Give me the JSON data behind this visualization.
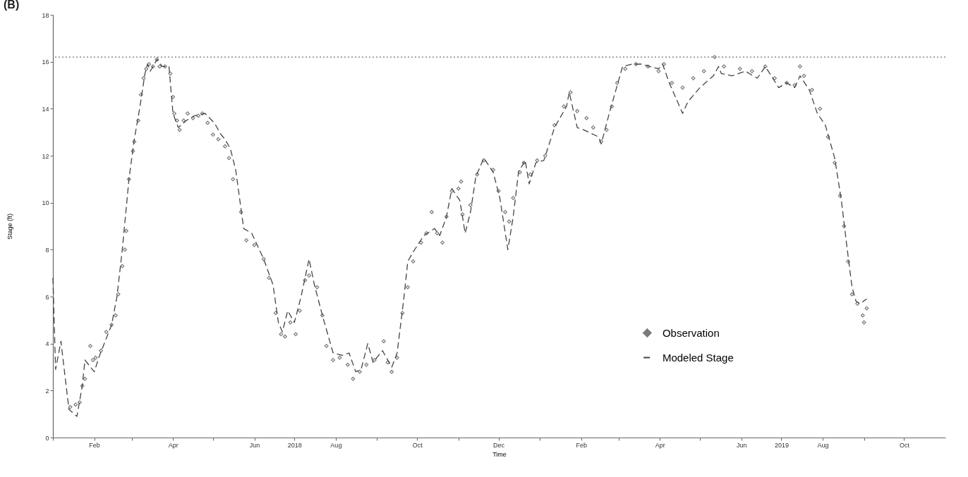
{
  "chart_data": {
    "type": "line",
    "title": "(B)",
    "xlabel": "Time",
    "ylabel": "Stage (ft)",
    "xlim": [
      "2018-01-01",
      "2019-11-01"
    ],
    "xticks": [
      {
        "value": "2018-01-01",
        "label": null
      },
      {
        "value": "2018-02-01",
        "label": "Feb"
      },
      {
        "value": "2018-03-01",
        "label": null
      },
      {
        "value": "2018-04-01",
        "label": "Apr"
      },
      {
        "value": "2018-05-01",
        "label": null
      },
      {
        "value": "2018-06-01",
        "label": "Jun"
      },
      {
        "value": "2018-07-01",
        "label": "2018"
      },
      {
        "value": "2018-08-01",
        "label": "Aug"
      },
      {
        "value": "2018-09-01",
        "label": null
      },
      {
        "value": "2018-10-01",
        "label": "Oct"
      },
      {
        "value": "2018-11-01",
        "label": null
      },
      {
        "value": "2018-12-01",
        "label": "Dec"
      },
      {
        "value": "2019-01-01",
        "label": null
      },
      {
        "value": "2019-02-01",
        "label": "Feb"
      },
      {
        "value": "2019-03-01",
        "label": null
      },
      {
        "value": "2019-04-01",
        "label": "Apr"
      },
      {
        "value": "2019-05-01",
        "label": null
      },
      {
        "value": "2019-06-01",
        "label": "Jun"
      },
      {
        "value": "2019-07-01",
        "label": "2019"
      },
      {
        "value": "2019-08-01",
        "label": "Aug"
      },
      {
        "value": "2019-09-01",
        "label": null
      },
      {
        "value": "2019-10-01",
        "label": "Oct"
      }
    ],
    "ylim": [
      0,
      18
    ],
    "yticks": [
      0,
      2,
      4,
      6,
      8,
      10,
      12,
      14,
      16,
      18
    ],
    "grid": false,
    "legend": "bottom right",
    "ref_lines": [
      {
        "axis": "y",
        "value": 16.2,
        "color": "#888888",
        "line_style": "dotted"
      }
    ],
    "series": [
      {
        "name": "Observation",
        "type": "scatter",
        "marker": "diamond",
        "color": "#7a7a7a",
        "x": [
          "2018-01-14",
          "2018-01-18",
          "2018-01-21",
          "2018-01-23",
          "2018-01-25",
          "2018-01-29",
          "2018-01-31",
          "2018-02-02",
          "2018-02-06",
          "2018-02-10",
          "2018-02-14",
          "2018-02-17",
          "2018-02-19",
          "2018-02-22",
          "2018-02-24",
          "2018-02-25",
          "2018-02-27",
          "2018-03-02",
          "2018-03-03",
          "2018-03-06",
          "2018-03-08",
          "2018-03-10",
          "2018-03-12",
          "2018-03-14",
          "2018-03-17",
          "2018-03-20",
          "2018-03-22",
          "2018-03-26",
          "2018-03-30",
          "2018-04-01",
          "2018-04-02",
          "2018-04-04",
          "2018-04-06",
          "2018-04-09",
          "2018-04-12",
          "2018-04-16",
          "2018-04-20",
          "2018-04-23",
          "2018-04-27",
          "2018-05-01",
          "2018-05-05",
          "2018-05-10",
          "2018-05-13",
          "2018-05-16",
          "2018-05-22",
          "2018-05-26",
          "2018-06-01",
          "2018-06-08",
          "2018-06-12",
          "2018-06-17",
          "2018-06-21",
          "2018-06-24",
          "2018-06-28",
          "2018-07-02",
          "2018-07-05",
          "2018-07-09",
          "2018-07-12",
          "2018-07-18",
          "2018-07-22",
          "2018-07-25",
          "2018-07-30",
          "2018-08-04",
          "2018-08-10",
          "2018-08-14",
          "2018-08-19",
          "2018-08-24",
          "2018-08-30",
          "2018-09-06",
          "2018-09-09",
          "2018-09-12",
          "2018-09-16",
          "2018-09-20",
          "2018-09-24",
          "2018-09-28",
          "2018-10-04",
          "2018-10-08",
          "2018-10-12",
          "2018-10-16",
          "2018-10-20",
          "2018-10-23",
          "2018-10-27",
          "2018-11-01",
          "2018-11-03",
          "2018-11-04",
          "2018-11-10",
          "2018-11-15",
          "2018-11-20",
          "2018-11-27",
          "2018-12-01",
          "2018-12-06",
          "2018-12-09",
          "2018-12-12",
          "2018-12-17",
          "2018-12-20",
          "2018-12-25",
          "2018-12-30",
          "2019-01-05",
          "2019-01-12",
          "2019-01-19",
          "2019-01-24",
          "2019-01-29",
          "2019-02-05",
          "2019-02-10",
          "2019-02-16",
          "2019-02-20",
          "2019-02-24",
          "2019-02-28",
          "2019-03-06",
          "2019-03-14",
          "2019-03-23",
          "2019-03-31",
          "2019-04-04",
          "2019-04-10",
          "2019-04-18",
          "2019-04-26",
          "2019-05-04",
          "2019-05-12",
          "2019-05-19",
          "2019-05-31",
          "2019-06-09",
          "2019-06-19",
          "2019-06-26",
          "2019-07-05",
          "2019-07-11",
          "2019-07-15",
          "2019-07-18",
          "2019-07-24",
          "2019-07-30",
          "2019-08-05",
          "2019-08-10",
          "2019-08-14",
          "2019-08-17",
          "2019-08-20",
          "2019-08-23",
          "2019-08-27",
          "2019-08-31",
          "2019-09-01",
          "2019-09-03"
        ],
        "values": [
          1.3,
          1.4,
          1.5,
          2.2,
          2.5,
          3.9,
          3.3,
          3.4,
          3.7,
          4.5,
          4.8,
          5.2,
          6.1,
          7.3,
          8.0,
          8.8,
          11.0,
          12.2,
          12.6,
          13.5,
          14.6,
          15.3,
          15.7,
          15.9,
          15.8,
          16.1,
          15.8,
          15.8,
          15.5,
          14.5,
          13.8,
          13.5,
          13.1,
          13.5,
          13.8,
          13.6,
          13.7,
          13.8,
          13.4,
          12.9,
          12.7,
          12.4,
          11.9,
          11.0,
          9.6,
          8.4,
          8.2,
          7.6,
          6.8,
          5.3,
          4.4,
          4.3,
          4.9,
          4.4,
          5.4,
          6.7,
          6.9,
          6.4,
          5.2,
          3.9,
          3.3,
          3.4,
          3.1,
          2.5,
          2.8,
          3.1,
          3.3,
          4.1,
          3.2,
          2.8,
          3.4,
          5.3,
          6.4,
          7.5,
          8.3,
          8.7,
          9.6,
          8.7,
          8.3,
          9.4,
          10.5,
          10.6,
          10.9,
          9.5,
          9.9,
          11.2,
          11.8,
          11.4,
          10.5,
          9.6,
          9.2,
          10.2,
          11.3,
          11.7,
          11.2,
          11.8,
          12.0,
          13.3,
          14.1,
          14.7,
          13.9,
          13.6,
          13.2,
          12.6,
          13.1,
          14.1,
          15.1,
          15.7,
          15.9,
          15.8,
          15.6,
          15.9,
          15.1,
          14.9,
          15.3,
          15.6,
          16.2,
          15.8,
          15.7,
          15.6,
          15.8,
          15.3,
          15.1,
          15.0,
          15.8,
          15.4,
          14.8,
          14.0,
          12.8,
          11.7,
          10.3,
          9.0,
          7.5,
          6.1,
          5.7,
          5.2,
          4.9,
          5.5
        ]
      },
      {
        "name": "Modeled Stage",
        "line_style": "dashed",
        "color": "#444444",
        "x": [
          "2018-01-01",
          "2018-01-03",
          "2018-01-07",
          "2018-01-13",
          "2018-01-19",
          "2018-01-23",
          "2018-01-25",
          "2018-02-01",
          "2018-02-05",
          "2018-02-14",
          "2018-02-18",
          "2018-02-22",
          "2018-02-27",
          "2018-03-03",
          "2018-03-07",
          "2018-03-11",
          "2018-03-13",
          "2018-03-15",
          "2018-03-20",
          "2018-03-24",
          "2018-03-29",
          "2018-04-01",
          "2018-04-05",
          "2018-04-11",
          "2018-04-17",
          "2018-04-25",
          "2018-05-02",
          "2018-05-07",
          "2018-05-10",
          "2018-05-14",
          "2018-05-18",
          "2018-05-24",
          "2018-05-30",
          "2018-06-08",
          "2018-06-15",
          "2018-06-19",
          "2018-06-22",
          "2018-06-26",
          "2018-07-01",
          "2018-07-06",
          "2018-07-12",
          "2018-07-16",
          "2018-07-22",
          "2018-07-30",
          "2018-08-06",
          "2018-08-11",
          "2018-08-16",
          "2018-08-20",
          "2018-08-25",
          "2018-08-29",
          "2018-09-05",
          "2018-09-12",
          "2018-09-16",
          "2018-09-21",
          "2018-09-24",
          "2018-09-28",
          "2018-10-06",
          "2018-10-14",
          "2018-10-18",
          "2018-10-23",
          "2018-10-27",
          "2018-11-02",
          "2018-11-06",
          "2018-11-10",
          "2018-11-14",
          "2018-11-20",
          "2018-11-27",
          "2018-12-02",
          "2018-12-08",
          "2018-12-12",
          "2018-12-16",
          "2018-12-21",
          "2018-12-24",
          "2018-12-29",
          "2019-01-04",
          "2019-01-12",
          "2019-01-21",
          "2019-01-23",
          "2019-01-29",
          "2019-02-03",
          "2019-02-14",
          "2019-02-16",
          "2019-02-22",
          "2019-02-28",
          "2019-03-04",
          "2019-03-11",
          "2019-03-18",
          "2019-03-31",
          "2019-04-03",
          "2019-04-08",
          "2019-04-18",
          "2019-04-22",
          "2019-05-01",
          "2019-05-11",
          "2019-05-15",
          "2019-05-17",
          "2019-05-25",
          "2019-06-04",
          "2019-06-13",
          "2019-06-19",
          "2019-06-29",
          "2019-07-05",
          "2019-07-11",
          "2019-07-15",
          "2019-07-22",
          "2019-07-28",
          "2019-08-03",
          "2019-08-10",
          "2019-08-15",
          "2019-08-19",
          "2019-08-23",
          "2019-08-26",
          "2019-08-29",
          "2019-09-03"
        ],
        "values": [
          6.8,
          2.9,
          4.1,
          1.2,
          0.9,
          2.2,
          3.3,
          2.8,
          3.5,
          4.8,
          6.0,
          8.0,
          11.0,
          12.7,
          14.0,
          15.5,
          15.9,
          15.6,
          16.1,
          15.8,
          15.8,
          13.8,
          13.2,
          13.5,
          13.7,
          13.8,
          13.4,
          12.9,
          12.7,
          12.3,
          11.4,
          8.9,
          8.7,
          7.6,
          6.5,
          4.9,
          4.5,
          5.4,
          4.9,
          6.0,
          7.6,
          6.5,
          5.2,
          3.6,
          3.5,
          3.6,
          2.8,
          2.9,
          4.0,
          3.2,
          3.7,
          3.0,
          3.6,
          5.9,
          7.5,
          7.9,
          8.6,
          8.9,
          8.6,
          9.4,
          10.6,
          10.1,
          8.7,
          9.6,
          11.1,
          11.9,
          11.3,
          10.2,
          8.0,
          9.4,
          11.3,
          11.8,
          10.8,
          11.7,
          11.8,
          13.2,
          14.1,
          14.7,
          13.2,
          13.1,
          12.8,
          12.5,
          13.8,
          15.0,
          15.8,
          15.9,
          15.9,
          15.7,
          15.9,
          15.1,
          13.8,
          14.3,
          14.9,
          15.4,
          15.8,
          15.5,
          15.4,
          15.6,
          15.3,
          15.8,
          14.9,
          15.1,
          14.9,
          15.4,
          14.8,
          13.8,
          13.3,
          11.9,
          10.1,
          8.2,
          6.4,
          5.8,
          5.7,
          5.9
        ]
      }
    ]
  }
}
